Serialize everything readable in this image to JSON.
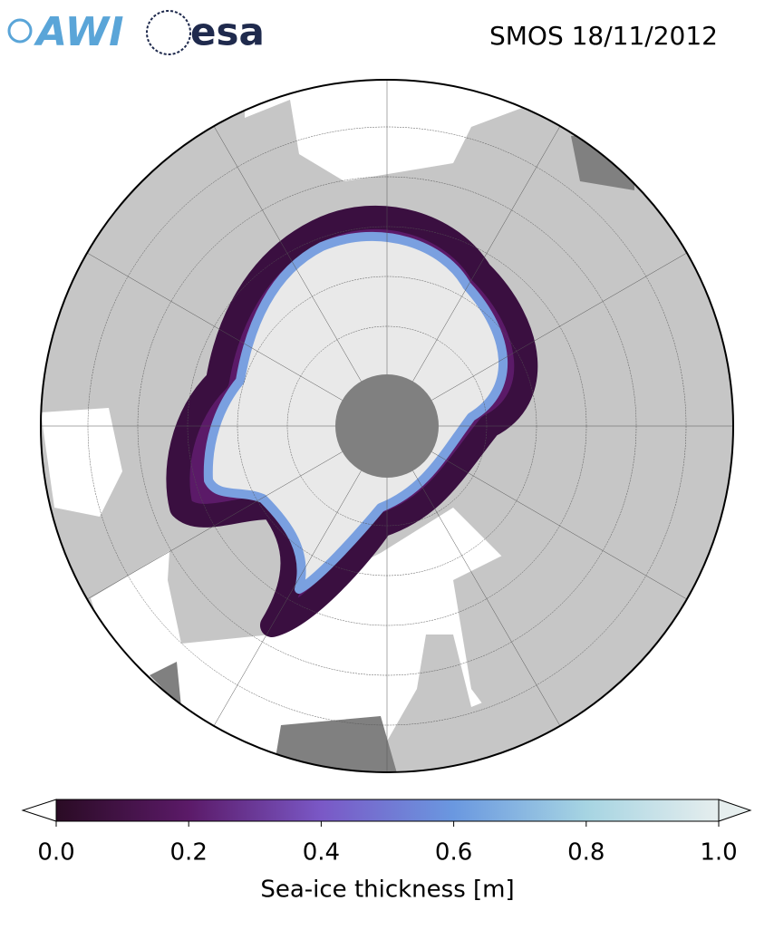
{
  "header": {
    "logos": [
      "AWI",
      "esa"
    ],
    "title": "SMOS 18/11/2012"
  },
  "colorbar": {
    "label": "Sea-ice thickness [m]",
    "lim": [
      0,
      1
    ],
    "ticks": [
      {
        "value": 0,
        "label": "0.0"
      },
      0.2,
      0.4,
      0.6,
      0.8,
      {
        "value": 1,
        "label": "1.0"
      }
    ],
    "colormap": [
      "#2a0b24",
      "#5b1a68",
      "#7a58c6",
      "#6a98e0",
      "#a6d4e2",
      "#e6eeee"
    ]
  }
}
